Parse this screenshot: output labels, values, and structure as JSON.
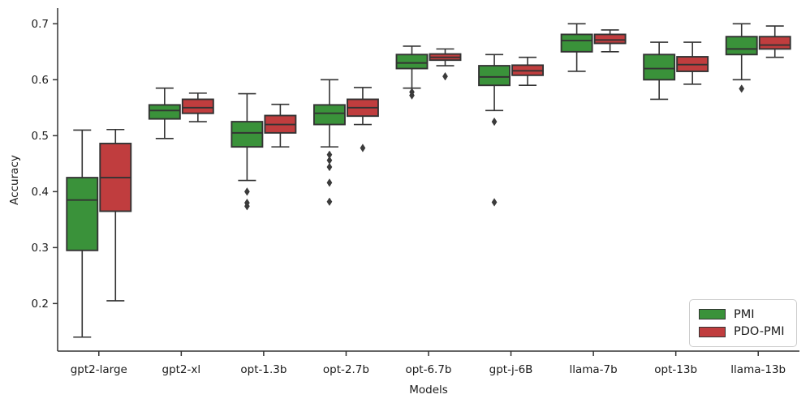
{
  "chart_data": {
    "type": "boxplot",
    "title": "",
    "xlabel": "Models",
    "ylabel": "Accuracy",
    "grid": false,
    "ylim": [
      0.115,
      0.728
    ],
    "yticks": [
      0.2,
      0.3,
      0.4,
      0.5,
      0.6,
      0.7
    ],
    "categories": [
      "gpt2-large",
      "gpt2-xl",
      "opt-1.3b",
      "opt-2.7b",
      "opt-6.7b",
      "gpt-j-6B",
      "llama-7b",
      "opt-13b",
      "llama-13b"
    ],
    "edge_color": "#333333",
    "outlier_color": "#3b3b3b",
    "legend": {
      "position": "lower right",
      "entries": [
        {
          "label": "PMI",
          "color": "#3a923a"
        },
        {
          "label": "PDO-PMI",
          "color": "#c03d3e"
        }
      ]
    },
    "series": [
      {
        "name": "PMI",
        "color": "#3a923a",
        "boxes": [
          {
            "whislo": 0.14,
            "q1": 0.295,
            "med": 0.385,
            "q3": 0.425,
            "whishi": 0.51,
            "outliers": []
          },
          {
            "whislo": 0.495,
            "q1": 0.53,
            "med": 0.545,
            "q3": 0.555,
            "whishi": 0.585,
            "outliers": []
          },
          {
            "whislo": 0.42,
            "q1": 0.48,
            "med": 0.505,
            "q3": 0.525,
            "whishi": 0.575,
            "outliers": [
              0.4,
              0.38,
              0.374
            ]
          },
          {
            "whislo": 0.48,
            "q1": 0.52,
            "med": 0.54,
            "q3": 0.555,
            "whishi": 0.6,
            "outliers": [
              0.466,
              0.456,
              0.444,
              0.416,
              0.382
            ]
          },
          {
            "whislo": 0.585,
            "q1": 0.62,
            "med": 0.63,
            "q3": 0.645,
            "whishi": 0.66,
            "outliers": [
              0.578,
              0.572
            ]
          },
          {
            "whislo": 0.545,
            "q1": 0.59,
            "med": 0.605,
            "q3": 0.625,
            "whishi": 0.645,
            "outliers": [
              0.525,
              0.381
            ]
          },
          {
            "whislo": 0.615,
            "q1": 0.65,
            "med": 0.67,
            "q3": 0.681,
            "whishi": 0.7,
            "outliers": []
          },
          {
            "whislo": 0.565,
            "q1": 0.6,
            "med": 0.62,
            "q3": 0.645,
            "whishi": 0.667,
            "outliers": []
          },
          {
            "whislo": 0.6,
            "q1": 0.645,
            "med": 0.655,
            "q3": 0.677,
            "whishi": 0.7,
            "outliers": [
              0.584
            ]
          }
        ]
      },
      {
        "name": "PDO-PMI",
        "color": "#c03d3e",
        "boxes": [
          {
            "whislo": 0.205,
            "q1": 0.365,
            "med": 0.425,
            "q3": 0.486,
            "whishi": 0.511,
            "outliers": []
          },
          {
            "whislo": 0.525,
            "q1": 0.54,
            "med": 0.55,
            "q3": 0.565,
            "whishi": 0.576,
            "outliers": []
          },
          {
            "whislo": 0.48,
            "q1": 0.505,
            "med": 0.52,
            "q3": 0.536,
            "whishi": 0.556,
            "outliers": []
          },
          {
            "whislo": 0.52,
            "q1": 0.535,
            "med": 0.55,
            "q3": 0.565,
            "whishi": 0.586,
            "outliers": [
              0.478
            ]
          },
          {
            "whislo": 0.625,
            "q1": 0.635,
            "med": 0.64,
            "q3": 0.646,
            "whishi": 0.655,
            "outliers": [
              0.606
            ]
          },
          {
            "whislo": 0.59,
            "q1": 0.608,
            "med": 0.616,
            "q3": 0.626,
            "whishi": 0.64,
            "outliers": []
          },
          {
            "whislo": 0.65,
            "q1": 0.665,
            "med": 0.671,
            "q3": 0.681,
            "whishi": 0.689,
            "outliers": []
          },
          {
            "whislo": 0.592,
            "q1": 0.615,
            "med": 0.627,
            "q3": 0.641,
            "whishi": 0.667,
            "outliers": []
          },
          {
            "whislo": 0.64,
            "q1": 0.655,
            "med": 0.662,
            "q3": 0.677,
            "whishi": 0.696,
            "outliers": []
          }
        ]
      }
    ]
  }
}
